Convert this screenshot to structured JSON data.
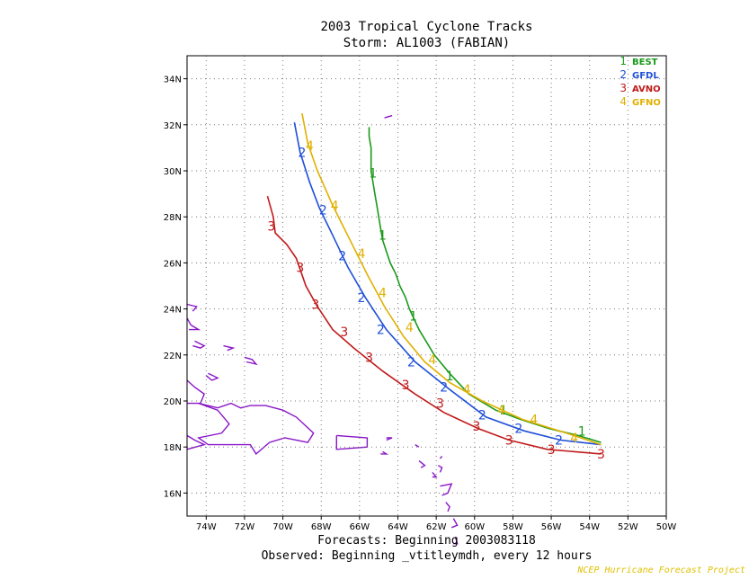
{
  "title": "2003 Tropical Cyclone Tracks",
  "subtitle": "Storm: AL1003 (FABIAN)",
  "footer_forecasts": "Forecasts: Beginning 2003083118",
  "footer_observed": "Observed: Beginning _vtitleymdh, every 12 hours",
  "credit": "NCEP Hurricane Forecast Project",
  "credit_color": "#e0c000",
  "chart_data": {
    "type": "line",
    "xlim": [
      -75,
      -50
    ],
    "ylim": [
      15,
      35
    ],
    "x_ticks": [
      -74,
      -72,
      -70,
      -68,
      -66,
      -64,
      -62,
      -60,
      -58,
      -56,
      -54,
      -52,
      -50
    ],
    "x_tick_labels": [
      "74W",
      "72W",
      "70W",
      "68W",
      "66W",
      "64W",
      "62W",
      "60W",
      "58W",
      "56W",
      "54W",
      "52W",
      "50W"
    ],
    "y_ticks": [
      16,
      18,
      20,
      22,
      24,
      26,
      28,
      30,
      32,
      34
    ],
    "y_tick_labels": [
      "16N",
      "18N",
      "20N",
      "22N",
      "24N",
      "26N",
      "28N",
      "30N",
      "32N",
      "34N"
    ],
    "grid": true,
    "legend_position": "top-right",
    "series": [
      {
        "name": "BEST",
        "marker": "1",
        "color": "#1a9a1a",
        "points": [
          [
            -53.4,
            18.2
          ],
          [
            -54.6,
            18.5
          ],
          [
            -56.1,
            18.8
          ],
          [
            -57.6,
            19.2
          ],
          [
            -58.9,
            19.6
          ],
          [
            -60.3,
            20.3
          ],
          [
            -61.3,
            21.2
          ],
          [
            -62.1,
            22.0
          ],
          [
            -62.9,
            23.1
          ],
          [
            -63.4,
            24.0
          ],
          [
            -63.6,
            24.5
          ],
          [
            -63.9,
            25.0
          ],
          [
            -64.1,
            25.5
          ],
          [
            -64.4,
            26.0
          ],
          [
            -64.6,
            26.5
          ],
          [
            -64.8,
            27.0
          ],
          [
            -64.9,
            27.5
          ],
          [
            -65.0,
            28.0
          ],
          [
            -65.1,
            28.5
          ],
          [
            -65.2,
            29.0
          ],
          [
            -65.3,
            29.5
          ],
          [
            -65.4,
            30.0
          ],
          [
            -65.4,
            30.5
          ],
          [
            -65.4,
            31.0
          ],
          [
            -65.5,
            31.5
          ],
          [
            -65.5,
            31.9
          ]
        ],
        "marker_points": [
          [
            -54.4,
            18.7
          ],
          [
            -58.5,
            19.6
          ],
          [
            -61.3,
            21.1
          ],
          [
            -63.2,
            23.7
          ],
          [
            -64.8,
            27.2
          ],
          [
            -65.3,
            29.9
          ]
        ]
      },
      {
        "name": "GFDL",
        "marker": "2",
        "color": "#1f4fd8",
        "points": [
          [
            -53.4,
            18.1
          ],
          [
            -55.5,
            18.3
          ],
          [
            -57.4,
            18.7
          ],
          [
            -59.4,
            19.3
          ],
          [
            -61.3,
            20.5
          ],
          [
            -63.1,
            21.7
          ],
          [
            -64.6,
            23.1
          ],
          [
            -65.7,
            24.5
          ],
          [
            -66.6,
            25.8
          ],
          [
            -67.4,
            27.2
          ],
          [
            -68.1,
            28.4
          ],
          [
            -68.6,
            29.5
          ],
          [
            -69.1,
            30.8
          ],
          [
            -69.4,
            32.1
          ]
        ],
        "marker_points": [
          [
            -55.6,
            18.3
          ],
          [
            -57.7,
            18.8
          ],
          [
            -59.6,
            19.4
          ],
          [
            -61.6,
            20.6
          ],
          [
            -63.3,
            21.7
          ],
          [
            -64.9,
            23.1
          ],
          [
            -65.9,
            24.5
          ],
          [
            -66.9,
            26.3
          ],
          [
            -67.9,
            28.3
          ],
          [
            -69.0,
            30.8
          ]
        ]
      },
      {
        "name": "AVNO",
        "marker": "3",
        "color": "#c01a1a",
        "points": [
          [
            -53.4,
            17.7
          ],
          [
            -56.2,
            17.9
          ],
          [
            -58.2,
            18.3
          ],
          [
            -59.8,
            18.8
          ],
          [
            -61.6,
            19.5
          ],
          [
            -63.1,
            20.3
          ],
          [
            -64.8,
            21.3
          ],
          [
            -66.3,
            22.3
          ],
          [
            -67.4,
            23.1
          ],
          [
            -68.2,
            24.1
          ],
          [
            -68.8,
            25.0
          ],
          [
            -69.3,
            26.2
          ],
          [
            -69.8,
            26.8
          ],
          [
            -70.4,
            27.3
          ],
          [
            -70.5,
            28.0
          ],
          [
            -70.8,
            28.9
          ]
        ],
        "marker_points": [
          [
            -53.4,
            17.7
          ],
          [
            -56.0,
            17.9
          ],
          [
            -58.2,
            18.3
          ],
          [
            -59.9,
            18.9
          ],
          [
            -61.8,
            19.9
          ],
          [
            -63.6,
            20.7
          ],
          [
            -65.5,
            21.9
          ],
          [
            -66.8,
            23.0
          ],
          [
            -68.3,
            24.2
          ],
          [
            -69.1,
            25.8
          ],
          [
            -70.6,
            27.6
          ]
        ]
      },
      {
        "name": "GFNO",
        "marker": "4",
        "color": "#e0b000",
        "points": [
          [
            -53.4,
            18.1
          ],
          [
            -55.2,
            18.6
          ],
          [
            -57.5,
            19.2
          ],
          [
            -59.6,
            20.0
          ],
          [
            -61.3,
            20.8
          ],
          [
            -62.6,
            21.7
          ],
          [
            -63.7,
            22.8
          ],
          [
            -64.7,
            24.1
          ],
          [
            -65.6,
            25.5
          ],
          [
            -66.5,
            27.0
          ],
          [
            -67.4,
            28.5
          ],
          [
            -68.2,
            30.0
          ],
          [
            -68.7,
            31.2
          ],
          [
            -69.0,
            32.5
          ]
        ],
        "marker_points": [
          [
            -54.8,
            18.4
          ],
          [
            -56.9,
            19.2
          ],
          [
            -58.6,
            19.6
          ],
          [
            -60.4,
            20.5
          ],
          [
            -62.2,
            21.8
          ],
          [
            -63.4,
            23.2
          ],
          [
            -64.8,
            24.7
          ],
          [
            -65.9,
            26.4
          ],
          [
            -67.3,
            28.5
          ],
          [
            -68.6,
            31.1
          ]
        ]
      }
    ]
  },
  "coast_color": "#8a16c8"
}
